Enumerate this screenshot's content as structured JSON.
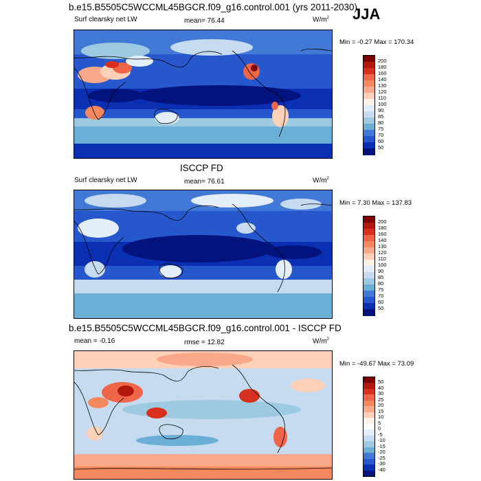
{
  "season": "JJA",
  "panels": [
    {
      "id": "model",
      "title": "b.e15.B5505C5WCCML45BGCR.f09_g16.control.001 (yrs 2011-2030)",
      "left_label": "Surf clearsky net LW",
      "stat_label": "mean=  76.44",
      "units": "W/m",
      "units_sup": "2",
      "minmax": "Min =  -0.27 Max = 170.34",
      "colorbar_levels": [
        "200",
        "180",
        "160",
        "140",
        "130",
        "120",
        "110",
        "100",
        "90",
        "85",
        "80",
        "75",
        "70",
        "60",
        "50"
      ],
      "colorbar_colors": [
        "#7f0000",
        "#b2180e",
        "#d7301f",
        "#ef6548",
        "#f4885f",
        "#f9a98a",
        "#fdd0b8",
        "#fef0e6",
        "#e4eefa",
        "#c6dbef",
        "#9ecae1",
        "#6baed6",
        "#4279d6",
        "#2757cd",
        "#0b2fb3",
        "#03137d"
      ]
    },
    {
      "id": "obs",
      "title": "ISCCP FD",
      "left_label": "Surf clearsky net LW",
      "stat_label": "mean=  76.61",
      "units": "W/m",
      "units_sup": "2",
      "minmax": "Min =   7.30 Max = 137.83",
      "colorbar_levels": [
        "200",
        "180",
        "160",
        "140",
        "130",
        "120",
        "110",
        "100",
        "90",
        "85",
        "80",
        "75",
        "70",
        "60",
        "50"
      ],
      "colorbar_colors": [
        "#7f0000",
        "#b2180e",
        "#d7301f",
        "#ef6548",
        "#f4885f",
        "#f9a98a",
        "#fdd0b8",
        "#fef0e6",
        "#e4eefa",
        "#c6dbef",
        "#9ecae1",
        "#6baed6",
        "#4279d6",
        "#2757cd",
        "#0b2fb3",
        "#03137d"
      ]
    },
    {
      "id": "diff",
      "title": "b.e15.B5505C5WCCML45BGCR.f09_g16.control.001 - ISCCP FD",
      "left_label": "mean =  -0.16",
      "stat_label": "rmse =  12.82",
      "units": "W/m",
      "units_sup": "2",
      "minmax": "Min = -49.67 Max =  73.09",
      "colorbar_levels": [
        "50",
        "40",
        "30",
        "25",
        "20",
        "15",
        "10",
        "5",
        "0",
        "-5",
        "-10",
        "-15",
        "-20",
        "-25",
        "-30",
        "-40"
      ],
      "colorbar_colors": [
        "#7f0000",
        "#b2180e",
        "#d7301f",
        "#ef6548",
        "#f4885f",
        "#f9a98a",
        "#fdd0b8",
        "#fef0e6",
        "#ffffff",
        "#e4eefa",
        "#c6dbef",
        "#9ecae1",
        "#6baed6",
        "#4279d6",
        "#2757cd",
        "#0b2fb3",
        "#03137d"
      ]
    }
  ]
}
